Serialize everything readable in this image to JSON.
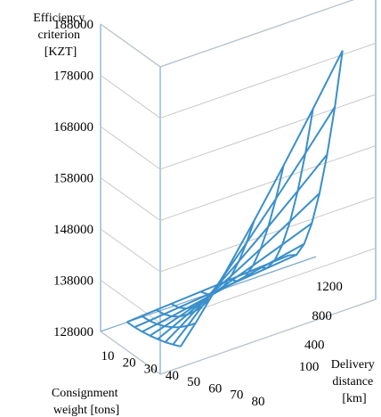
{
  "chart_data": {
    "type": "surface3d",
    "zlabel": [
      "Efficiency",
      "criterion",
      "[KZT]"
    ],
    "xlabel": [
      "Consignment",
      "weight [tons]"
    ],
    "ylabel": [
      "Delivery",
      "distance",
      "[km]"
    ],
    "z_ticks": [
      "188000",
      "178000",
      "168000",
      "158000",
      "148000",
      "138000",
      "128000"
    ],
    "x_ticks": [
      "10",
      "20",
      "30",
      "40",
      "50",
      "60",
      "70",
      "80"
    ],
    "y_ticks": [
      "100",
      "400",
      "800",
      "1200"
    ],
    "zlim": [
      128000,
      188000
    ],
    "x_values": [
      10,
      20,
      30,
      40,
      50,
      60,
      70,
      80
    ],
    "y_values": [
      100,
      200,
      300,
      400,
      600,
      800,
      1000,
      1200
    ],
    "colors": {
      "surface": "#3a8fca",
      "frame": "#7ea8cd",
      "grid": "#c8c8c8"
    }
  }
}
